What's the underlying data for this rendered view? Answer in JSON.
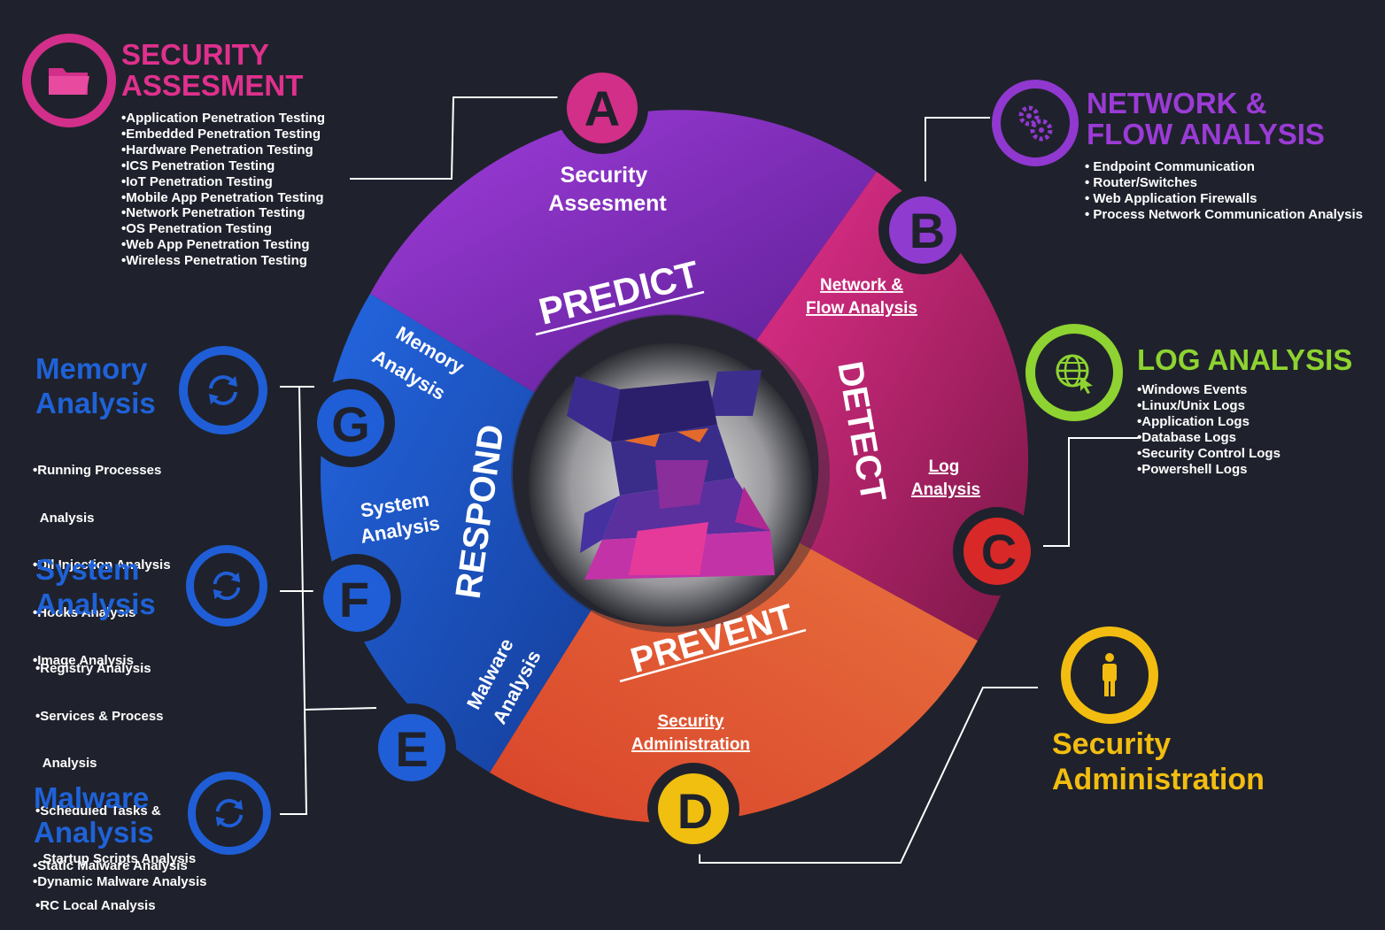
{
  "colors": {
    "background": "#1f222c",
    "pink": "#e0308e",
    "purple": "#9b3bd6",
    "green": "#8ed331",
    "yellow": "#f2bd10",
    "blue": "#1f62d8",
    "orange": "#e7683a",
    "red": "#e02a2a"
  },
  "wheel": {
    "phases": {
      "predict": "PREDICT",
      "detect": "DETECT",
      "prevent": "PREVENT",
      "respond": "RESPOND"
    },
    "segment_labels": {
      "security_assesment_1": "Security",
      "security_assesment_2": "Assesment",
      "network_1": "Network &",
      "network_2": "Flow Analysis",
      "log_1": "Log",
      "log_2": "Analysis",
      "admin_1": "Security",
      "admin_2": "Administration",
      "memory_1": "Memory",
      "memory_2": "Analysis",
      "system_1": "System",
      "system_2": "Analysis",
      "malware_1": "Malware",
      "malware_2": "Analysis"
    },
    "badges": {
      "a": "A",
      "b": "B",
      "c": "C",
      "d": "D",
      "e": "E",
      "f": "F",
      "g": "G"
    }
  },
  "panels": {
    "security_assesment": {
      "title_line1": "SECURITY",
      "title_line2": "ASSESMENT",
      "icon": "folder-icon",
      "items": [
        "•Application Penetration Testing",
        "•Embedded Penetration Testing",
        "•Hardware Penetration Testing",
        "•ICS Penetration Testing",
        "•IoT Penetration Testing",
        "•Mobile App Penetration Testing",
        "•Network Penetration Testing",
        "•OS Penetration Testing",
        "•Web App Penetration Testing",
        "•Wireless Penetration Testing"
      ]
    },
    "network": {
      "title_line1": "NETWORK &",
      "title_line2": "FLOW ANALYSIS",
      "icon": "gears-icon",
      "items": [
        "• Endpoint Communication",
        "• Router/Switches",
        "• Web Application Firewalls",
        "• Process Network Communication Analysis"
      ]
    },
    "log": {
      "title": "LOG ANALYSIS",
      "icon": "globe-cursor-icon",
      "items": [
        "•Windows Events",
        "•Linux/Unix Logs",
        "•Application Logs",
        "•Database Logs",
        "•Security Control Logs",
        "•Powershell Logs"
      ]
    },
    "admin": {
      "title_line1": "Security",
      "title_line2": "Administration",
      "icon": "person-icon"
    },
    "memory": {
      "title_line1": "Memory",
      "title_line2": "Analysis",
      "icon": "refresh-icon",
      "items": [
        "•Running Processes",
        "  Analysis",
        "•Dll Injection Analysis",
        "•Hooks Analysis",
        "•Image Analysis"
      ]
    },
    "system": {
      "title_line1": "System",
      "title_line2": "Analysis",
      "icon": "refresh-icon",
      "items": [
        "•Registry Analysis",
        "•Services & Process",
        "  Analysis",
        "•Scheduled Tasks &",
        "  Startup Scripts Analysis",
        "•RC Local Analysis"
      ]
    },
    "malware": {
      "title_line1": "Malware",
      "title_line2": "Analysis",
      "icon": "refresh-icon",
      "items": [
        "•Static Malware Analysis",
        "•Dynamic Malware Analysis"
      ]
    }
  }
}
